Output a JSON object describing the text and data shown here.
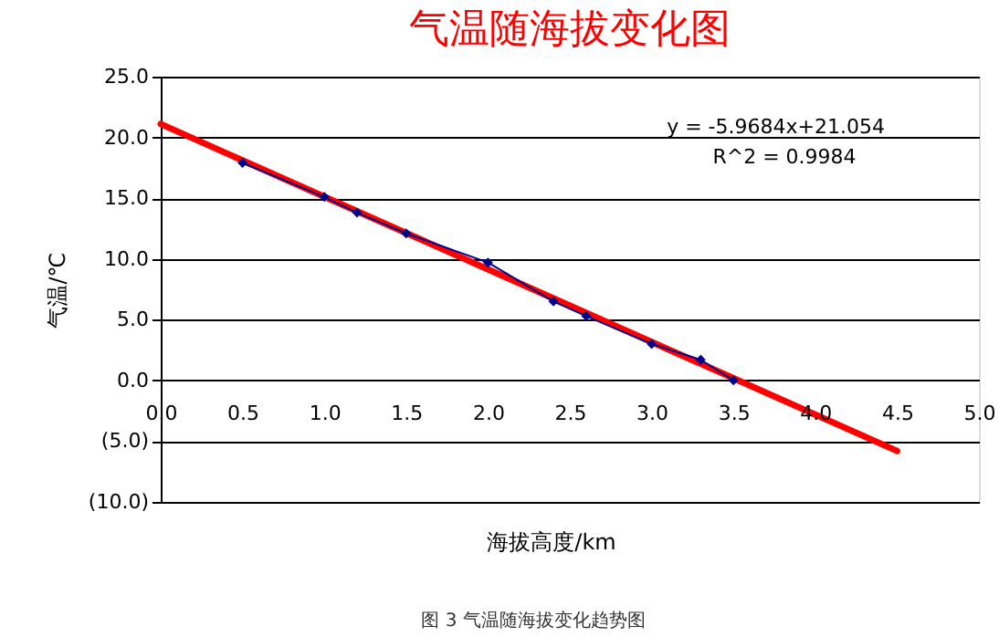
{
  "chart_data": {
    "type": "line",
    "title": "气温随海拔变化图",
    "xlabel": "海拔高度/km",
    "ylabel": "气温/℃",
    "x": [
      0.5,
      1.0,
      1.2,
      1.5,
      2.0,
      2.4,
      2.6,
      3.0,
      3.3,
      3.5
    ],
    "series": [
      {
        "color": "#00008b",
        "marker": "diamond",
        "values": [
          17.9,
          15.1,
          13.8,
          12.1,
          9.7,
          6.5,
          5.3,
          3.0,
          1.7,
          0.0
        ]
      },
      {
        "color": "#ff0000",
        "marker": "none",
        "x": [
          0,
          4.5
        ],
        "values": [
          21.1,
          -5.8
        ]
      }
    ],
    "xlim": [
      0,
      5
    ],
    "ylim": [
      -10,
      25
    ],
    "xticks": [
      {
        "value": 0,
        "label": "0.0"
      },
      0.5,
      {
        "value": 1,
        "label": "1.0"
      },
      1.5,
      {
        "value": 2,
        "label": "2.0"
      },
      2.5,
      {
        "value": 3,
        "label": "3.0"
      },
      3.5,
      {
        "value": 4,
        "label": "4.0"
      },
      4.5,
      {
        "value": 5,
        "label": "5.0"
      }
    ],
    "yticks": [
      {
        "value": -10,
        "label": "(10.0)"
      },
      {
        "value": -5,
        "label": "(5.0)"
      },
      {
        "value": 0,
        "label": "0.0"
      },
      {
        "value": 5,
        "label": "5.0"
      },
      {
        "value": 10,
        "label": "10.0"
      },
      {
        "value": 15,
        "label": "15.0"
      },
      {
        "value": 20,
        "label": "20.0"
      },
      {
        "value": 25,
        "label": "25.0"
      }
    ],
    "grid": "y",
    "legend": false,
    "annotations": [
      "y = -5.9684x+21.054",
      "R^2 = 0.9984",
      "图 3  气温随海拔变化趋势图"
    ]
  }
}
